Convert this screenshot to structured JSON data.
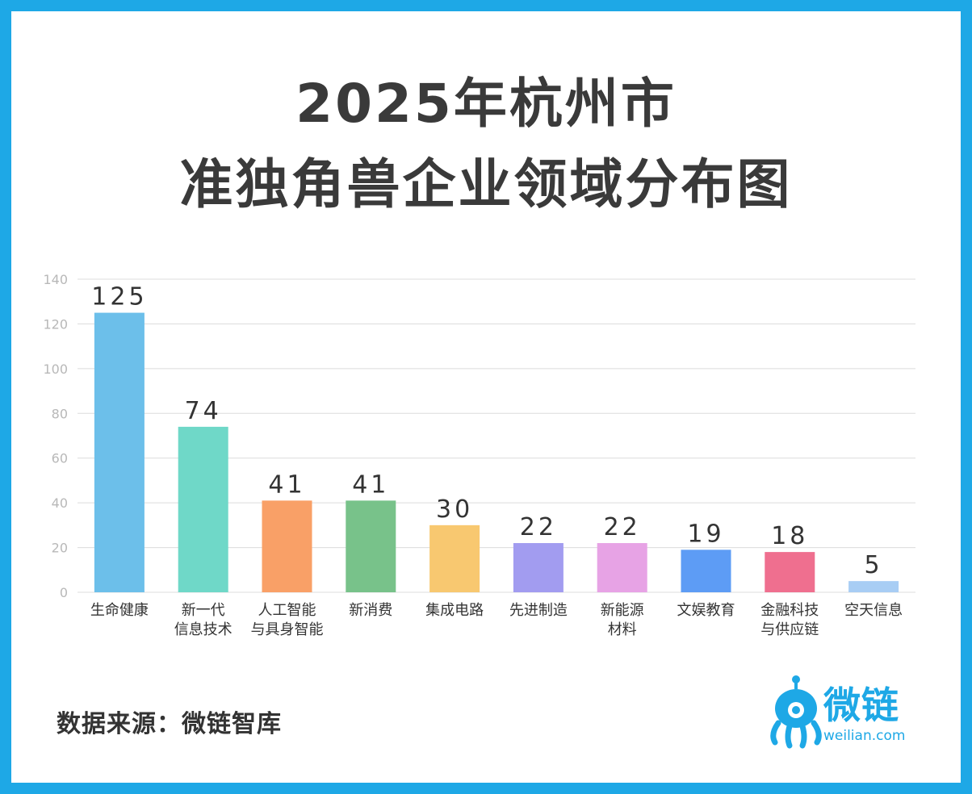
{
  "chart_data": {
    "type": "bar",
    "title_line1": "2025年杭州市",
    "title_line2": "准独角兽企业领域分布图",
    "categories": [
      [
        "生命健康"
      ],
      [
        "新一代",
        "信息技术"
      ],
      [
        "人工智能",
        "与具身智能"
      ],
      [
        "新消费"
      ],
      [
        "集成电路"
      ],
      [
        "先进制造"
      ],
      [
        "新能源",
        "材料"
      ],
      [
        "文娱教育"
      ],
      [
        "金融科技",
        "与供应链"
      ],
      [
        "空天信息"
      ]
    ],
    "values": [
      125,
      74,
      41,
      41,
      30,
      22,
      22,
      19,
      18,
      5
    ],
    "colors": [
      "#6cbfea",
      "#6fd8c8",
      "#f9a067",
      "#78c28a",
      "#f8c870",
      "#a29cf0",
      "#e7a3e5",
      "#5d9cf5",
      "#ef6f8f",
      "#a8cdf4"
    ],
    "ylim": [
      0,
      140
    ],
    "yticks": [
      0,
      20,
      40,
      60,
      80,
      100,
      120,
      140
    ],
    "grid": true,
    "legend": "none"
  },
  "source": "数据来源：微链智库",
  "logo": {
    "name": "微链",
    "url": "weilian.com"
  }
}
